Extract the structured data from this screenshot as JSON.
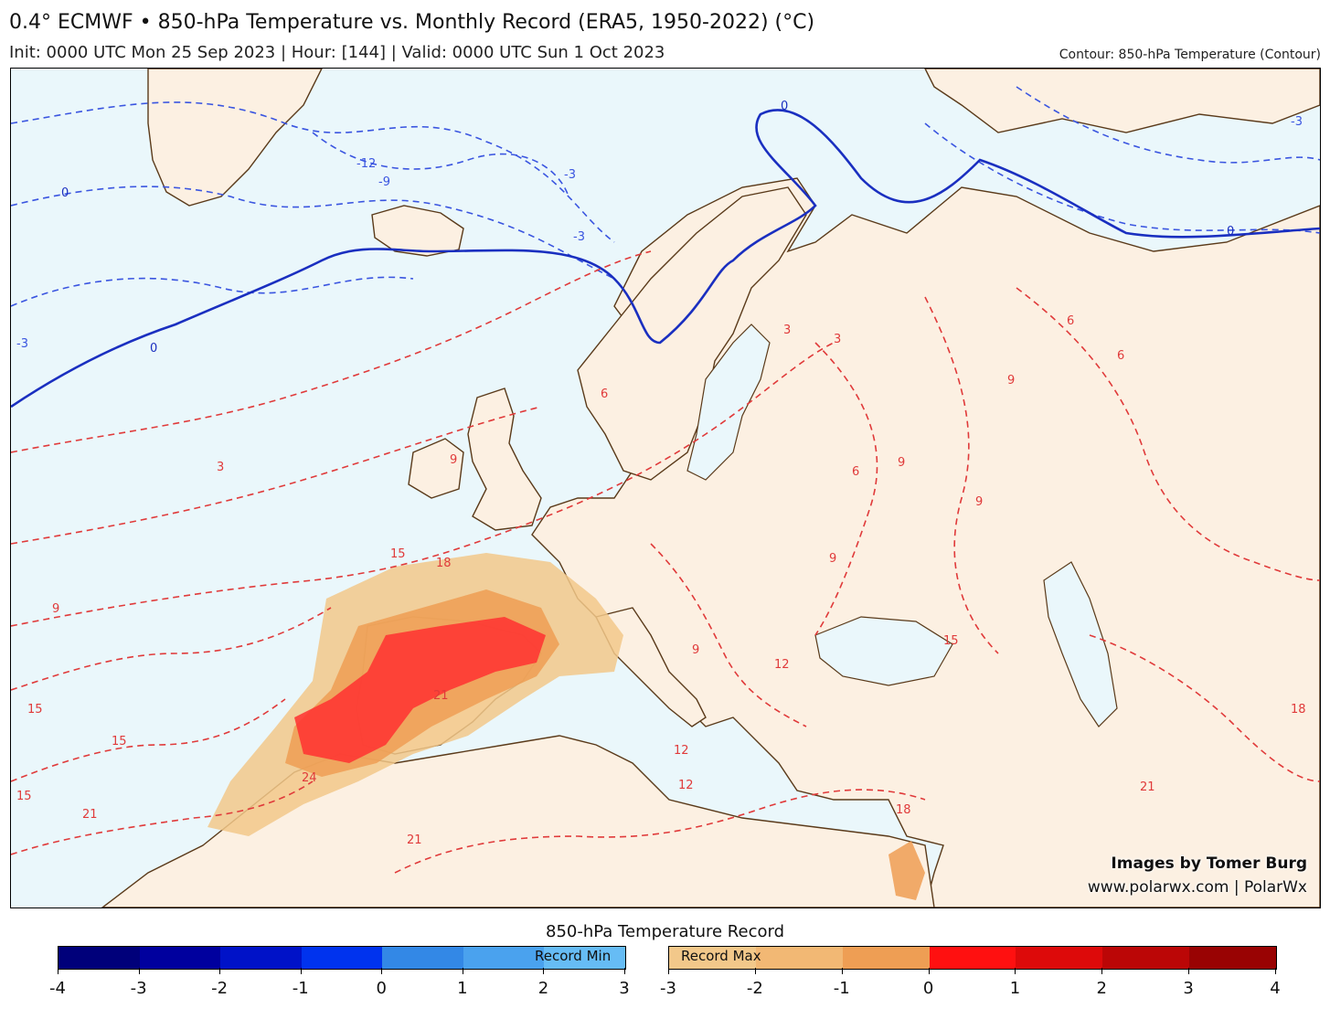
{
  "header": {
    "title": "0.4° ECMWF • 850-hPa Temperature vs. Monthly Record (ERA5, 1950-2022) (°C)",
    "subtitle": "Init: 0000 UTC Mon 25 Sep 2023 | Hour: [144] | Valid: 0000 UTC Sun 1 Oct 2023",
    "contour_note": "Contour: 850-hPa Temperature (Contour)"
  },
  "map": {
    "region": "Europe / North Atlantic / North Africa",
    "ocean_color": "#eaf7fb",
    "land_color": "#fcf0e2",
    "border_color": "#5a3a1a",
    "contour_labels": {
      "blue": [
        "-12",
        "-9",
        "-3",
        "-3",
        "-3",
        "0",
        "0",
        "0",
        "0",
        "-3"
      ],
      "red": [
        "3",
        "3",
        "3",
        "6",
        "6",
        "6",
        "6",
        "9",
        "9",
        "9",
        "9",
        "9",
        "9",
        "9",
        "12",
        "12",
        "12",
        "15",
        "15",
        "15",
        "15",
        "15",
        "18",
        "18",
        "18",
        "21",
        "21",
        "21",
        "21",
        "24"
      ]
    }
  },
  "credits": {
    "line1": "Images by Tomer Burg",
    "line2": "www.polarwx.com | PolarWx"
  },
  "legend": {
    "title": "850-hPa Temperature Record",
    "min_label": "Record Min",
    "max_label": "Record Max",
    "min_ticks": [
      "-4",
      "-3",
      "-2",
      "-1",
      "0",
      "1",
      "2",
      "3"
    ],
    "max_ticks": [
      "-3",
      "-2",
      "-1",
      "0",
      "1",
      "2",
      "3",
      "4"
    ],
    "min_colors": [
      "#00007a",
      "#00009e",
      "#0012c8",
      "#0033ee",
      "#3388e6",
      "#4aa2ee",
      "#66bcf5"
    ],
    "max_colors": [
      "#f2c88a",
      "#f2b874",
      "#ee9e54",
      "#ff1010",
      "#dd0a0a",
      "#bb0606",
      "#990303"
    ]
  }
}
